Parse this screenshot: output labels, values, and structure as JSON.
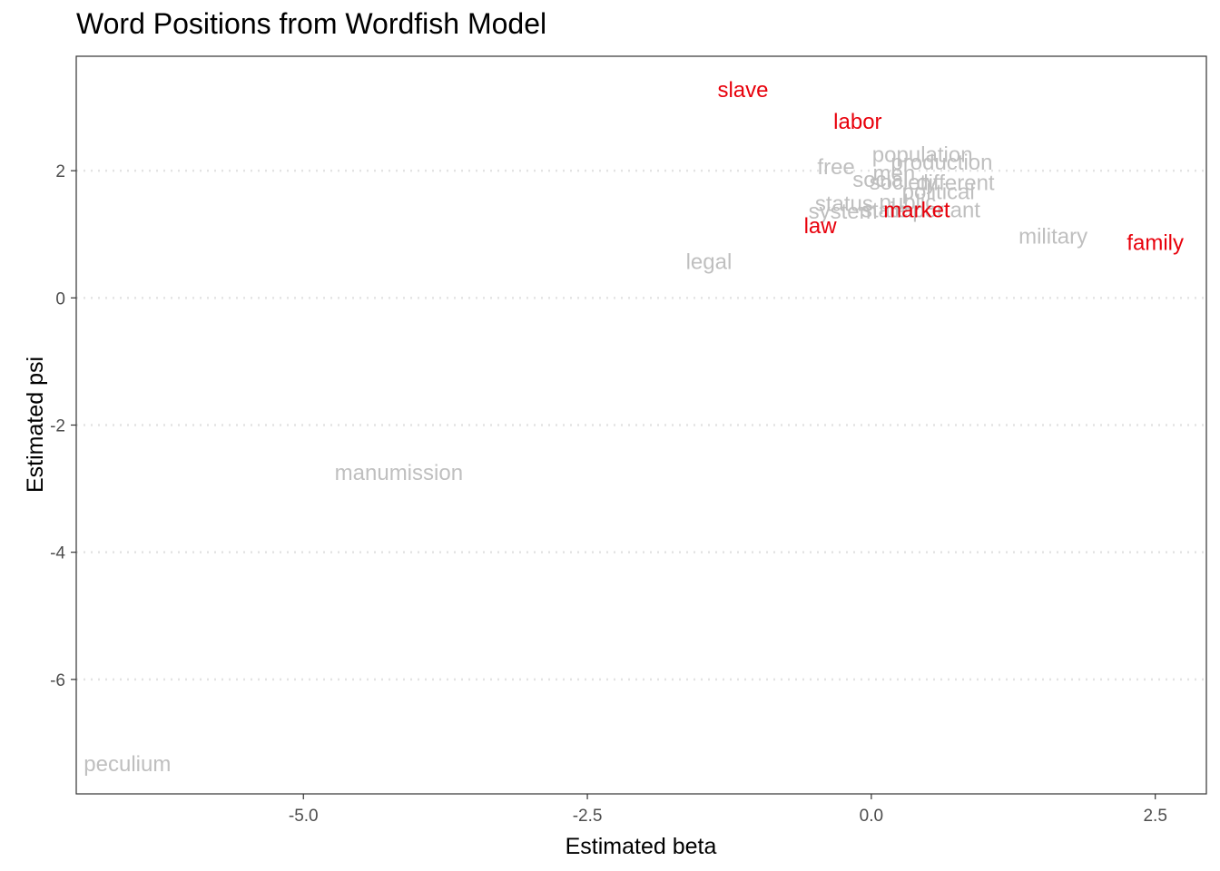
{
  "chart_data": {
    "type": "scatter",
    "title": "Word Positions from Wordfish Model",
    "xlabel": "Estimated beta",
    "ylabel": "Estimated psi",
    "xlim": [
      -7.0,
      2.95
    ],
    "ylim": [
      -7.8,
      3.8
    ],
    "x_ticks": [
      -5.0,
      -2.5,
      0.0,
      2.5
    ],
    "x_tick_labels": [
      "-5.0",
      "-2.5",
      "0.0",
      "2.5"
    ],
    "y_ticks": [
      -6,
      -4,
      -2,
      0,
      2
    ],
    "y_tick_labels": [
      "-6",
      "-4",
      "-2",
      "0",
      "2"
    ],
    "grid": "horizontal-dotted",
    "highlight_color": "#e8000b",
    "base_color": "#bfbfbf",
    "points": [
      {
        "word": "slave",
        "x": -1.13,
        "y": 3.27,
        "highlight": true
      },
      {
        "word": "labor",
        "x": -0.12,
        "y": 2.77,
        "highlight": true
      },
      {
        "word": "population",
        "x": 0.45,
        "y": 2.25,
        "highlight": false
      },
      {
        "word": "production",
        "x": 0.62,
        "y": 2.13,
        "highlight": false
      },
      {
        "word": "free",
        "x": -0.31,
        "y": 2.06,
        "highlight": false
      },
      {
        "word": "men",
        "x": 0.2,
        "y": 1.96,
        "highlight": false
      },
      {
        "word": "social",
        "x": 0.08,
        "y": 1.86,
        "highlight": false
      },
      {
        "word": "society",
        "x": 0.28,
        "y": 1.82,
        "highlight": false
      },
      {
        "word": "different",
        "x": 0.74,
        "y": 1.81,
        "highlight": false
      },
      {
        "word": "political",
        "x": 0.59,
        "y": 1.67,
        "highlight": false
      },
      {
        "word": "public",
        "x": 0.32,
        "y": 1.5,
        "highlight": false
      },
      {
        "word": "status",
        "x": -0.24,
        "y": 1.48,
        "highlight": false
      },
      {
        "word": "system",
        "x": -0.25,
        "y": 1.36,
        "highlight": false
      },
      {
        "word": "state",
        "x": 0.12,
        "y": 1.38,
        "highlight": false
      },
      {
        "word": "important",
        "x": 0.56,
        "y": 1.38,
        "highlight": false
      },
      {
        "word": "market",
        "x": 0.4,
        "y": 1.38,
        "highlight": true
      },
      {
        "word": "law",
        "x": -0.45,
        "y": 1.13,
        "highlight": true
      },
      {
        "word": "military",
        "x": 1.6,
        "y": 0.97,
        "highlight": false
      },
      {
        "word": "family",
        "x": 2.5,
        "y": 0.87,
        "highlight": true
      },
      {
        "word": "legal",
        "x": -1.43,
        "y": 0.57,
        "highlight": false
      },
      {
        "word": "manumission",
        "x": -4.16,
        "y": -2.75,
        "highlight": false
      },
      {
        "word": "peculium",
        "x": -6.55,
        "y": -7.33,
        "highlight": false
      }
    ]
  }
}
